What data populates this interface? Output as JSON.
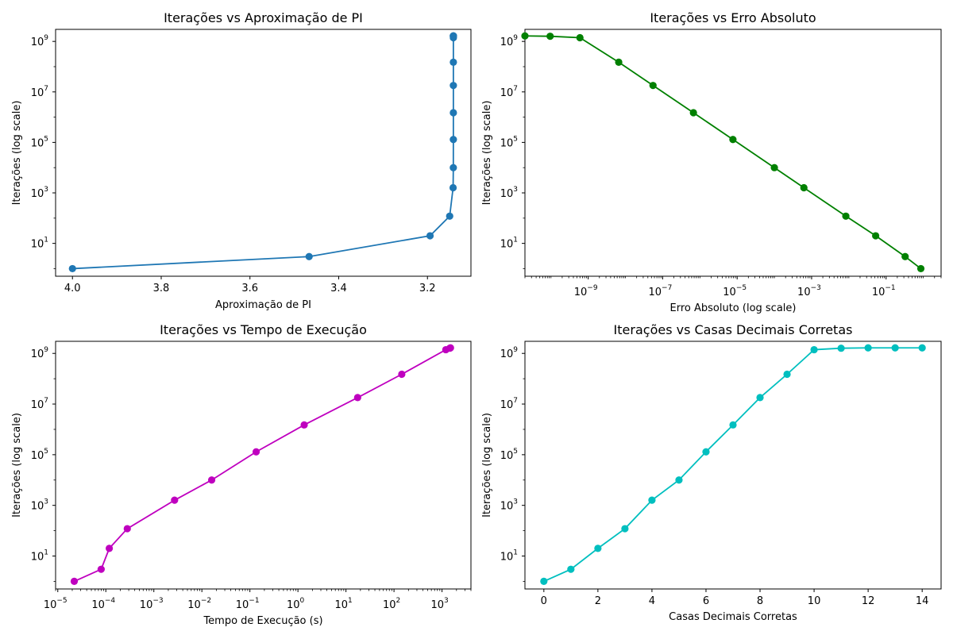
{
  "chart_data": [
    {
      "type": "line",
      "title": "Iterações vs Aproximação de PI",
      "xlabel": "Aproximação de PI",
      "ylabel": "Iterações (log scale)",
      "xscale": "linear",
      "yscale": "log",
      "xlim": [
        4.038,
        3.102
      ],
      "ylim": [
        0.5,
        3000000000.0
      ],
      "x_inverted": true,
      "x_ticks": [
        4.0,
        3.8,
        3.6,
        3.4,
        3.2
      ],
      "x_tick_labels": [
        "4.0",
        "3.8",
        "3.6",
        "3.4",
        "3.2"
      ],
      "y_ticks": [
        1,
        3,
        5,
        7,
        9
      ],
      "y_tick_labels": [
        "10",
        "10",
        "10",
        "10",
        "10"
      ],
      "y_tick_exponents": [
        "1",
        "3",
        "5",
        "7",
        "9"
      ],
      "grid": false,
      "color": "#1f77b4",
      "series": [
        {
          "x": [
            4.0,
            3.4667,
            3.1941,
            3.1499,
            3.1422,
            3.1417,
            3.1416,
            3.141593,
            3.1415927,
            3.14159265,
            3.141592654,
            3.1415926536,
            3.1415926536,
            3.1415926536,
            3.1415926536
          ],
          "y": [
            1,
            3,
            20,
            120,
            1600,
            10000,
            130000,
            1500000,
            18000000,
            150000000,
            1400000000,
            1600000000,
            1650000000,
            1650000000,
            1650000000
          ]
        }
      ]
    },
    {
      "type": "line",
      "title": "Iterações vs Erro Absoluto",
      "xlabel": "Erro Absoluto (log scale)",
      "ylabel": "Iterações (log scale)",
      "xscale": "log",
      "yscale": "log",
      "xlim": [
        2e-11,
        3.0
      ],
      "ylim": [
        0.5,
        3000000000.0
      ],
      "x_inverted": true,
      "x_ticks": [
        -9,
        -7,
        -5,
        -3,
        -1
      ],
      "x_tick_labels": [
        "10",
        "10",
        "10",
        "10",
        "10"
      ],
      "x_tick_exponents": [
        "−9",
        "−7",
        "−5",
        "−3",
        "−1"
      ],
      "y_ticks": [
        1,
        3,
        5,
        7,
        9
      ],
      "y_tick_labels": [
        "10",
        "10",
        "10",
        "10",
        "10"
      ],
      "y_tick_exponents": [
        "1",
        "3",
        "5",
        "7",
        "9"
      ],
      "grid": false,
      "color": "#008000",
      "series": [
        {
          "x": [
            0.858,
            0.325,
            0.0525,
            0.0083,
            0.00062,
            0.0001,
            7.7e-06,
            6.7e-07,
            5.5e-08,
            6.6e-09,
            6e-10,
            9.5e-11,
            2e-11
          ],
          "y": [
            1,
            3,
            20,
            120,
            1600,
            10000,
            130000,
            1500000,
            18000000,
            150000000,
            1400000000,
            1600000000,
            1650000000
          ]
        }
      ]
    },
    {
      "type": "line",
      "title": "Iterações vs Tempo de Execução",
      "xlabel": "Tempo de Execução (s)",
      "ylabel": "Iterações (log scale)",
      "xscale": "log",
      "yscale": "log",
      "xlim": [
        9e-06,
        4000
      ],
      "ylim": [
        0.5,
        3000000000.0
      ],
      "x_inverted": false,
      "x_ticks": [
        -5,
        -4,
        -3,
        -2,
        -1,
        0,
        1,
        2,
        3
      ],
      "x_tick_labels": [
        "10",
        "10",
        "10",
        "10",
        "10",
        "10",
        "10",
        "10",
        "10"
      ],
      "x_tick_exponents": [
        "−5",
        "−4",
        "−3",
        "−2",
        "−1",
        "0",
        "1",
        "2",
        "3"
      ],
      "y_ticks": [
        1,
        3,
        5,
        7,
        9
      ],
      "y_tick_labels": [
        "10",
        "10",
        "10",
        "10",
        "10"
      ],
      "y_tick_exponents": [
        "1",
        "3",
        "5",
        "7",
        "9"
      ],
      "grid": false,
      "color": "#bf00bf",
      "series": [
        {
          "x": [
            2.2e-05,
            8e-05,
            0.000118,
            0.00028,
            0.0027,
            0.016,
            0.135,
            1.35,
            17.5,
            145,
            1200,
            1450,
            1500
          ],
          "y": [
            1,
            3,
            20,
            120,
            1600,
            10000,
            130000,
            1500000,
            18000000,
            150000000,
            1400000000,
            1600000000,
            1650000000
          ]
        }
      ]
    },
    {
      "type": "line",
      "title": "Iterações vs Casas Decimais Corretas",
      "xlabel": "Casas Decimais Corretas",
      "ylabel": "Iterações (log scale)",
      "xscale": "linear",
      "yscale": "log",
      "xlim": [
        -0.7,
        14.7
      ],
      "ylim": [
        0.5,
        3000000000.0
      ],
      "x_inverted": false,
      "x_ticks": [
        0,
        2,
        4,
        6,
        8,
        10,
        12,
        14
      ],
      "x_tick_labels": [
        "0",
        "2",
        "4",
        "6",
        "8",
        "10",
        "12",
        "14"
      ],
      "y_ticks": [
        1,
        3,
        5,
        7,
        9
      ],
      "y_tick_labels": [
        "10",
        "10",
        "10",
        "10",
        "10"
      ],
      "y_tick_exponents": [
        "1",
        "3",
        "5",
        "7",
        "9"
      ],
      "grid": false,
      "color": "#00bfbf",
      "series": [
        {
          "x": [
            0,
            1,
            2,
            3,
            4,
            5,
            6,
            7,
            8,
            9,
            10,
            11,
            12,
            13,
            14
          ],
          "y": [
            1,
            3,
            20,
            120,
            1600,
            10000,
            130000,
            1500000,
            18000000,
            150000000,
            1400000000,
            1600000000,
            1650000000,
            1650000000,
            1650000000
          ]
        }
      ]
    }
  ]
}
